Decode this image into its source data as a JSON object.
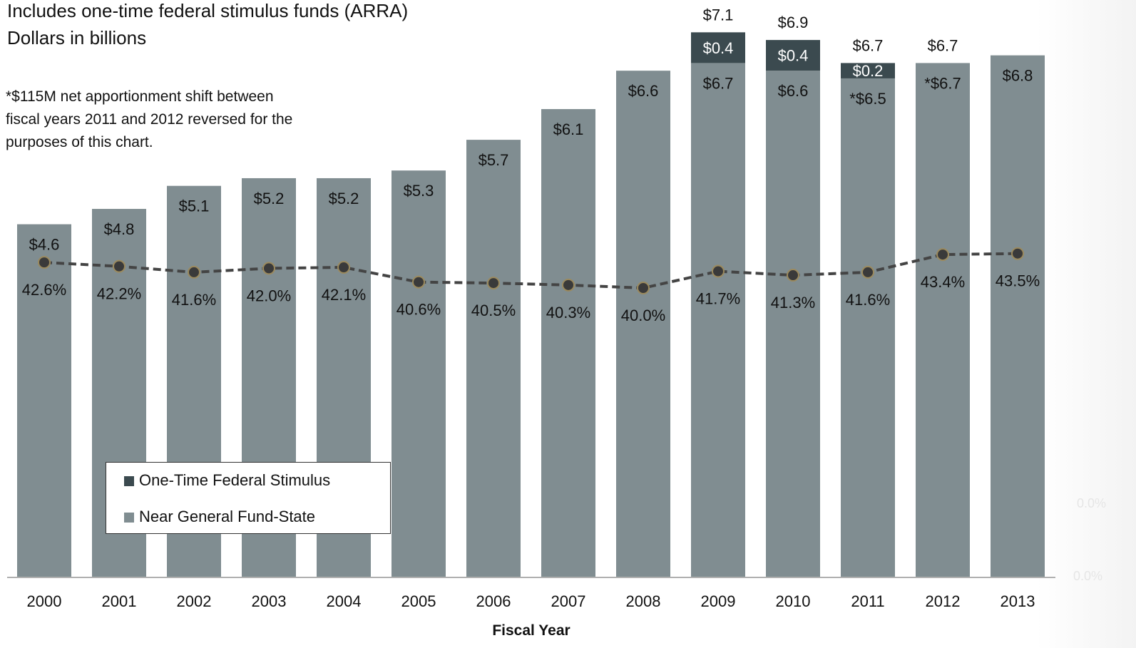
{
  "header": {
    "line1": "Includes one-time federal stimulus funds (ARRA)",
    "line2": "Dollars in billions"
  },
  "note": {
    "line1": "*$115M net apportionment shift between",
    "line2": "fiscal years 2011 and 2012 reversed for the",
    "line3": "purposes of this chart."
  },
  "legend": {
    "stimulus": "One-Time Federal Stimulus",
    "near_gf": "Near General Fund-State"
  },
  "faint_ticks": [
    "0.0%",
    "0.0%"
  ],
  "colors": {
    "near_gf": "#808d91",
    "stimulus": "#3b4a4f",
    "line": "#444444",
    "marker": "#3a3a3a",
    "marker_edge": "#9b8a5e",
    "axis": "#b0b0b0"
  },
  "chart_data": {
    "type": "bar",
    "stacked": true,
    "xlabel": "Fiscal Year",
    "categories": [
      "2000",
      "2001",
      "2002",
      "2003",
      "2004",
      "2005",
      "2006",
      "2007",
      "2008",
      "2009",
      "2010",
      "2011",
      "2012",
      "2013"
    ],
    "series": [
      {
        "name": "Near General Fund-State",
        "values": [
          4.6,
          4.8,
          5.1,
          5.2,
          5.2,
          5.3,
          5.7,
          6.1,
          6.6,
          6.7,
          6.6,
          6.5,
          6.7,
          6.8
        ],
        "labels": [
          "$4.6",
          "$4.8",
          "$5.1",
          "$5.2",
          "$5.2",
          "$5.3",
          "$5.7",
          "$6.1",
          "$6.6",
          "$6.7",
          "$6.6",
          "*$6.5",
          "*$6.7",
          "$6.8"
        ]
      },
      {
        "name": "One-Time Federal Stimulus",
        "values": [
          0,
          0,
          0,
          0,
          0,
          0,
          0,
          0,
          0,
          0.4,
          0.4,
          0.2,
          0,
          0
        ],
        "labels": [
          "",
          "",
          "",
          "",
          "",
          "",
          "",
          "",
          "",
          "$0.4",
          "$0.4",
          "$0.2",
          "",
          ""
        ]
      }
    ],
    "totals": [
      "",
      "",
      "",
      "",
      "",
      "",
      "",
      "",
      "",
      "$7.1",
      "$6.9",
      "$6.7",
      "$6.7",
      ""
    ],
    "line_series": {
      "values": [
        42.6,
        42.2,
        41.6,
        42.0,
        42.1,
        40.6,
        40.5,
        40.3,
        40.0,
        41.7,
        41.3,
        41.6,
        43.4,
        43.5
      ],
      "labels": [
        "42.6%",
        "42.2%",
        "41.6%",
        "42.0%",
        "42.1%",
        "40.6%",
        "40.5%",
        "40.3%",
        "40.0%",
        "41.7%",
        "41.3%",
        "41.6%",
        "43.4%",
        "43.5%"
      ]
    }
  }
}
